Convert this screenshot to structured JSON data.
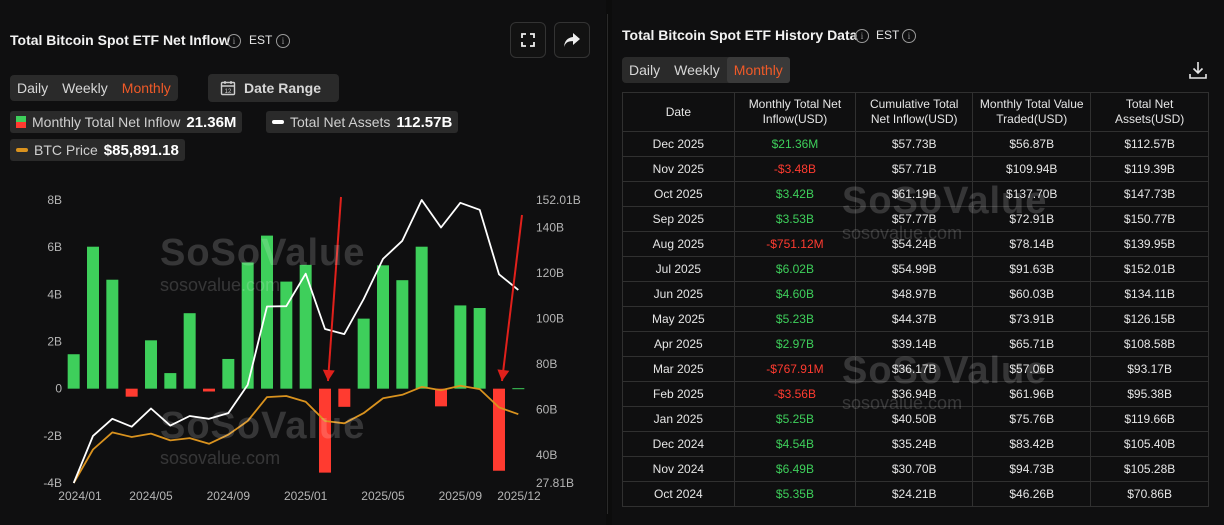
{
  "left": {
    "title": "Total Bitcoin Spot ETF Net Inflow",
    "timezone": "EST",
    "period_tabs": [
      "Daily",
      "Weekly",
      "Monthly"
    ],
    "active_tab": "Monthly",
    "date_range_label": "Date Range",
    "legend": [
      {
        "label": "Monthly Total Net Inflow",
        "value": "21.36M"
      },
      {
        "label": "Total Net Assets",
        "value": "112.57B"
      },
      {
        "label": "BTC Price",
        "value": "$85,891.18"
      }
    ],
    "watermark": {
      "brand": "SoSoValue",
      "site": "sosovalue.com"
    },
    "colors": {
      "positive": "#3ecf5b",
      "negative": "#ff3b30",
      "assets_line": "#ffffff",
      "btc_line": "#d9921e",
      "arrow": "#e0201b"
    }
  },
  "chart_data": {
    "type": "bar",
    "title": "Total Bitcoin Spot ETF Net Inflow",
    "x_tick_labels": [
      "2024/01",
      "2024/05",
      "2024/09",
      "2025/01",
      "2025/05",
      "2025/09",
      "2025/12"
    ],
    "categories": [
      "2024/01",
      "2024/02",
      "2024/03",
      "2024/04",
      "2024/05",
      "2024/06",
      "2024/07",
      "2024/08",
      "2024/09",
      "2024/10",
      "2024/11",
      "2024/12",
      "2025/01",
      "2025/02",
      "2025/03",
      "2025/04",
      "2025/05",
      "2025/06",
      "2025/07",
      "2025/08",
      "2025/09",
      "2025/10",
      "2025/11",
      "2025/12"
    ],
    "left_axis": {
      "ticks": [
        "8B",
        "6B",
        "4B",
        "2B",
        "0",
        "-2B",
        "-4B"
      ],
      "ylim": [
        -4,
        8
      ],
      "unit": "B"
    },
    "right_axis": {
      "ticks": [
        "152.01B",
        "140B",
        "120B",
        "100B",
        "80B",
        "60B",
        "40B",
        "27.81B"
      ],
      "ylim": [
        27.81,
        152.01
      ],
      "unit": "B"
    },
    "series": [
      {
        "name": "Monthly Total Net Inflow",
        "type": "bar",
        "axis": "left",
        "values": [
          1.46,
          6.02,
          4.62,
          -0.34,
          2.05,
          0.66,
          3.2,
          -0.12,
          1.26,
          5.35,
          6.49,
          4.54,
          5.25,
          -3.56,
          -0.77,
          2.97,
          5.23,
          4.6,
          6.02,
          -0.75,
          3.53,
          3.42,
          -3.48,
          0.02
        ]
      },
      {
        "name": "Total Net Assets",
        "type": "line",
        "axis": "right",
        "values": [
          27.81,
          48.5,
          56.0,
          52.5,
          60.5,
          53.0,
          57.2,
          56.0,
          58.5,
          70.86,
          105.28,
          105.4,
          119.66,
          95.38,
          93.17,
          108.58,
          126.15,
          134.11,
          152.01,
          139.95,
          150.77,
          147.73,
          119.39,
          112.57
        ]
      },
      {
        "name": "BTC Price",
        "type": "line",
        "axis": "right",
        "values": [
          27.81,
          42.5,
          50.0,
          48.0,
          49.5,
          46.5,
          47.5,
          45.0,
          49.0,
          55.0,
          65.5,
          66.0,
          63.5,
          55.0,
          54.0,
          58.5,
          65.0,
          66.5,
          70.0,
          68.5,
          70.5,
          69.0,
          61.0,
          58.0
        ]
      }
    ]
  },
  "right": {
    "title": "Total Bitcoin Spot ETF History Data",
    "timezone": "EST",
    "period_tabs": [
      "Daily",
      "Weekly",
      "Monthly"
    ],
    "active_tab": "Monthly",
    "columns": [
      "Date",
      "Monthly Total Net Inflow(USD)",
      "Cumulative Total Net Inflow(USD)",
      "Monthly Total Value Traded(USD)",
      "Total Net Assets(USD)"
    ],
    "rows": [
      {
        "date": "Dec 2025",
        "inflow": "$21.36M",
        "cum": "$57.73B",
        "traded": "$56.87B",
        "assets": "$112.57B",
        "sign": "pos"
      },
      {
        "date": "Nov 2025",
        "inflow": "-$3.48B",
        "cum": "$57.71B",
        "traded": "$109.94B",
        "assets": "$119.39B",
        "sign": "neg"
      },
      {
        "date": "Oct 2025",
        "inflow": "$3.42B",
        "cum": "$61.19B",
        "traded": "$137.70B",
        "assets": "$147.73B",
        "sign": "pos"
      },
      {
        "date": "Sep 2025",
        "inflow": "$3.53B",
        "cum": "$57.77B",
        "traded": "$72.91B",
        "assets": "$150.77B",
        "sign": "pos"
      },
      {
        "date": "Aug 2025",
        "inflow": "-$751.12M",
        "cum": "$54.24B",
        "traded": "$78.14B",
        "assets": "$139.95B",
        "sign": "neg"
      },
      {
        "date": "Jul 2025",
        "inflow": "$6.02B",
        "cum": "$54.99B",
        "traded": "$91.63B",
        "assets": "$152.01B",
        "sign": "pos"
      },
      {
        "date": "Jun 2025",
        "inflow": "$4.60B",
        "cum": "$48.97B",
        "traded": "$60.03B",
        "assets": "$134.11B",
        "sign": "pos"
      },
      {
        "date": "May 2025",
        "inflow": "$5.23B",
        "cum": "$44.37B",
        "traded": "$73.91B",
        "assets": "$126.15B",
        "sign": "pos"
      },
      {
        "date": "Apr 2025",
        "inflow": "$2.97B",
        "cum": "$39.14B",
        "traded": "$65.71B",
        "assets": "$108.58B",
        "sign": "pos"
      },
      {
        "date": "Mar 2025",
        "inflow": "-$767.91M",
        "cum": "$36.17B",
        "traded": "$57.06B",
        "assets": "$93.17B",
        "sign": "neg"
      },
      {
        "date": "Feb 2025",
        "inflow": "-$3.56B",
        "cum": "$36.94B",
        "traded": "$61.96B",
        "assets": "$95.38B",
        "sign": "neg"
      },
      {
        "date": "Jan 2025",
        "inflow": "$5.25B",
        "cum": "$40.50B",
        "traded": "$75.76B",
        "assets": "$119.66B",
        "sign": "pos"
      },
      {
        "date": "Dec 2024",
        "inflow": "$4.54B",
        "cum": "$35.24B",
        "traded": "$83.42B",
        "assets": "$105.40B",
        "sign": "pos"
      },
      {
        "date": "Nov 2024",
        "inflow": "$6.49B",
        "cum": "$30.70B",
        "traded": "$94.73B",
        "assets": "$105.28B",
        "sign": "pos"
      },
      {
        "date": "Oct 2024",
        "inflow": "$5.35B",
        "cum": "$24.21B",
        "traded": "$46.26B",
        "assets": "$70.86B",
        "sign": "pos"
      }
    ]
  },
  "icons": {
    "expand": "expand-icon",
    "share": "share-icon",
    "calendar": "calendar-icon",
    "download": "download-icon",
    "info": "info-icon"
  }
}
